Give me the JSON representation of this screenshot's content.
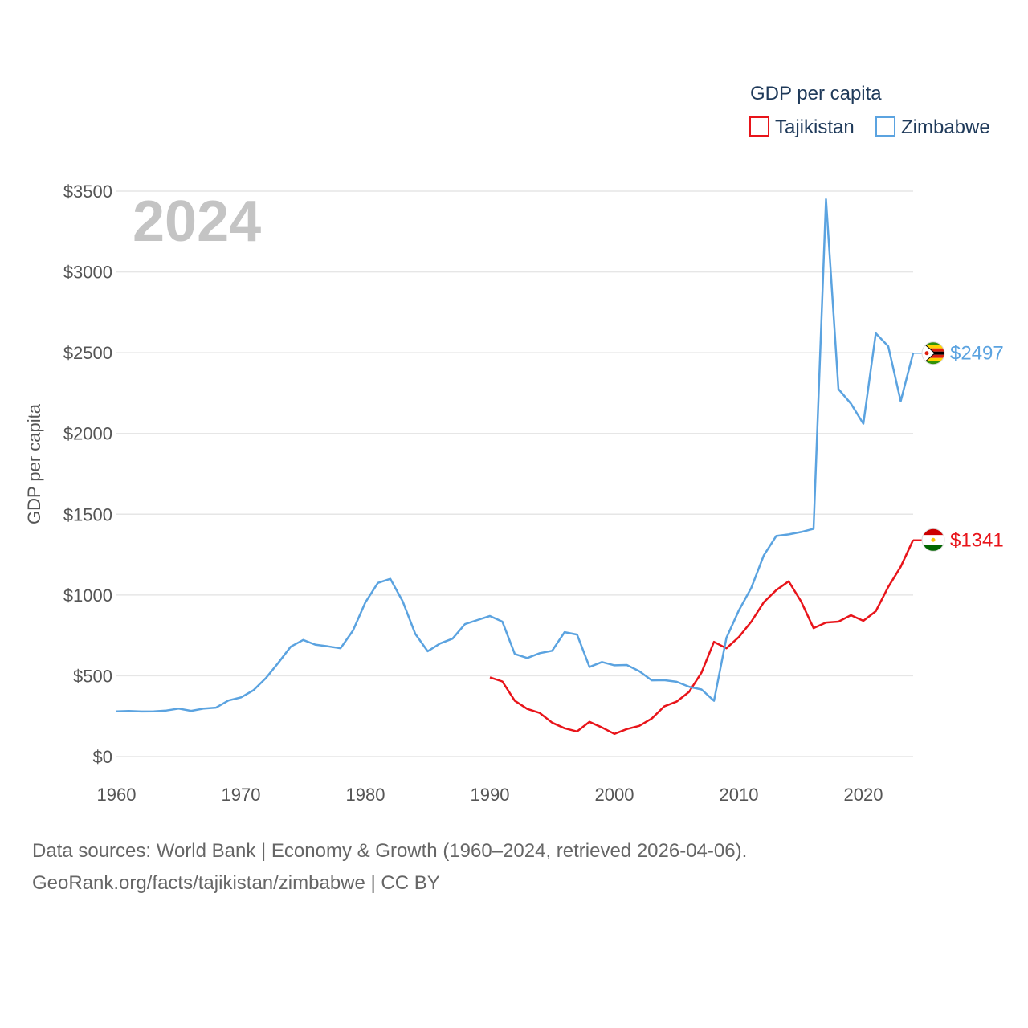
{
  "chart_data": {
    "type": "line",
    "watermark_year": "2024",
    "ylabel": "GDP per capita",
    "legend_title": "GDP per capita",
    "ylim": [
      0,
      3500
    ],
    "xlim": [
      1960,
      2024
    ],
    "yticks": [
      0,
      500,
      1000,
      1500,
      2000,
      2500,
      3000,
      3500
    ],
    "ytick_labels": [
      "$0",
      "$500",
      "$1000",
      "$1500",
      "$2000",
      "$2500",
      "$3000",
      "$3500"
    ],
    "xticks": [
      1960,
      1970,
      1980,
      1990,
      2000,
      2010,
      2020
    ],
    "xtick_labels": [
      "1960",
      "1970",
      "1980",
      "1990",
      "2000",
      "2010",
      "2020"
    ],
    "series": [
      {
        "name": "Tajikistan",
        "color": "#e8141a",
        "end_label": "$1341",
        "x": [
          1990,
          1991,
          1992,
          1993,
          1994,
          1995,
          1996,
          1997,
          1998,
          1999,
          2000,
          2001,
          2002,
          2003,
          2004,
          2005,
          2006,
          2007,
          2008,
          2009,
          2010,
          2011,
          2012,
          2013,
          2014,
          2015,
          2016,
          2017,
          2018,
          2019,
          2020,
          2021,
          2022,
          2023,
          2024
        ],
        "values": [
          490,
          465,
          345,
          295,
          270,
          210,
          175,
          155,
          215,
          180,
          140,
          170,
          190,
          235,
          310,
          340,
          400,
          520,
          710,
          670,
          740,
          835,
          955,
          1030,
          1085,
          960,
          795,
          830,
          835,
          875,
          840,
          900,
          1050,
          1175,
          1341
        ]
      },
      {
        "name": "Zimbabwe",
        "color": "#5ba3e0",
        "end_label": "$2497",
        "x": [
          1960,
          1961,
          1962,
          1963,
          1964,
          1965,
          1966,
          1967,
          1968,
          1969,
          1970,
          1971,
          1972,
          1973,
          1974,
          1975,
          1976,
          1977,
          1978,
          1979,
          1980,
          1981,
          1982,
          1983,
          1984,
          1985,
          1986,
          1987,
          1988,
          1989,
          1990,
          1991,
          1992,
          1993,
          1994,
          1995,
          1996,
          1997,
          1998,
          1999,
          2000,
          2001,
          2002,
          2003,
          2004,
          2005,
          2006,
          2007,
          2008,
          2009,
          2010,
          2011,
          2012,
          2013,
          2014,
          2015,
          2016,
          2017,
          2018,
          2019,
          2020,
          2021,
          2022,
          2023,
          2024
        ],
        "values": [
          280,
          282,
          279,
          280,
          285,
          297,
          283,
          297,
          303,
          347,
          366,
          410,
          485,
          580,
          680,
          722,
          692,
          682,
          670,
          780,
          955,
          1075,
          1100,
          960,
          760,
          652,
          700,
          730,
          820,
          845,
          870,
          835,
          635,
          610,
          640,
          655,
          770,
          755,
          555,
          585,
          565,
          567,
          528,
          472,
          473,
          463,
          432,
          415,
          345,
          735,
          905,
          1045,
          1245,
          1365,
          1375,
          1390,
          1410,
          3450,
          2275,
          2185,
          2060,
          2620,
          2540,
          2200,
          2497
        ]
      }
    ]
  },
  "legend": {
    "items": [
      "Tajikistan",
      "Zimbabwe"
    ]
  },
  "footer": {
    "line1": "Data sources: World Bank | Economy & Growth (1960–2024, retrieved 2026-04-06).",
    "line2": "GeoRank.org/facts/tajikistan/zimbabwe | CC BY"
  }
}
